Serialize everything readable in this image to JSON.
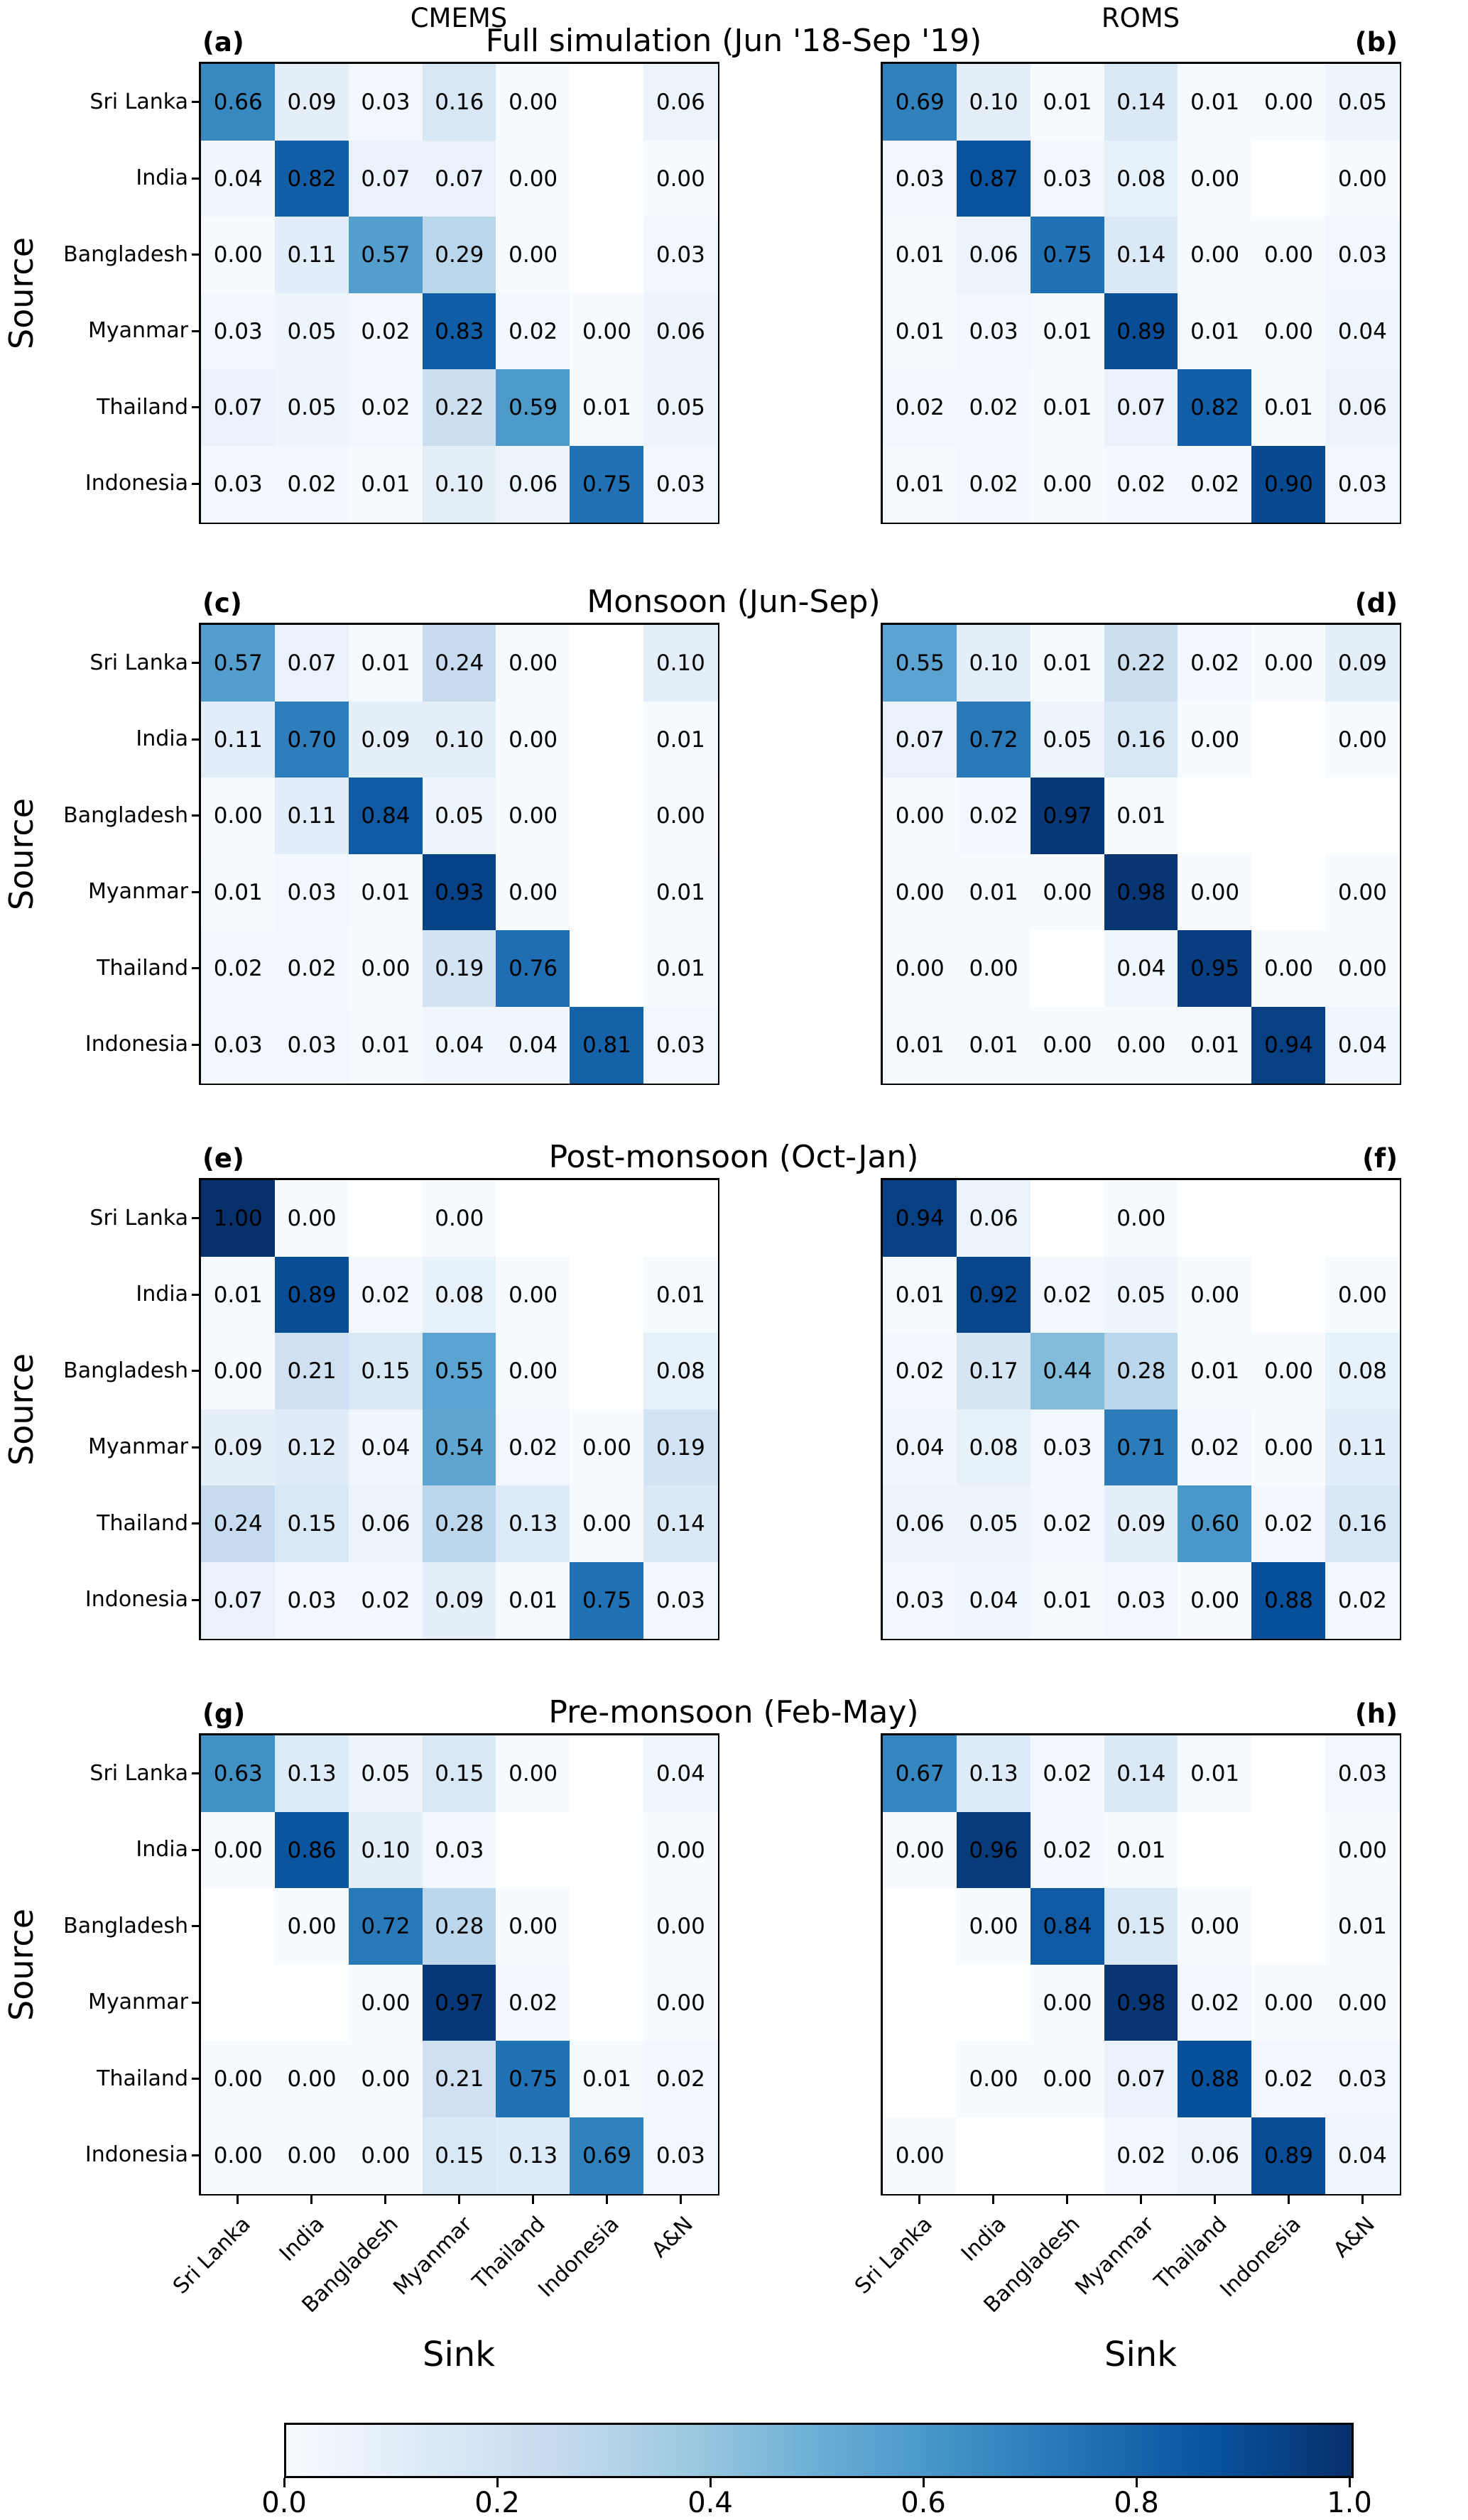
{
  "figure": {
    "column_headers": [
      "CMEMS",
      "ROMS"
    ],
    "row_titles": [
      "Full simulation (Jun '18-Sep '19)",
      "Monsoon (Jun-Sep)",
      "Post-monsoon (Oct-Jan)",
      "Pre-monsoon (Feb-May)"
    ],
    "panel_labels": [
      "(a)",
      "(b)",
      "(c)",
      "(d)",
      "(e)",
      "(f)",
      "(g)",
      "(h)"
    ],
    "y_axis_label": "Source",
    "x_axis_label": "Sink"
  },
  "chart_data": {
    "type": "heatmap",
    "colormap": "Blues",
    "vmin": 0,
    "vmax": 1,
    "sources": [
      "Sri Lanka",
      "India",
      "Bangladesh",
      "Myanmar",
      "Thailand",
      "Indonesia"
    ],
    "sinks": [
      "Sri Lanka",
      "India",
      "Bangladesh",
      "Myanmar",
      "Thailand",
      "Indonesia",
      "A&N"
    ],
    "panels": [
      {
        "label": "(a)",
        "model": "CMEMS",
        "season": "Full simulation (Jun '18-Sep '19)",
        "values": [
          [
            0.66,
            0.09,
            0.03,
            0.16,
            0.0,
            null,
            0.06
          ],
          [
            0.04,
            0.82,
            0.07,
            0.07,
            0.0,
            null,
            0.0
          ],
          [
            0.0,
            0.11,
            0.57,
            0.29,
            0.0,
            null,
            0.03
          ],
          [
            0.03,
            0.05,
            0.02,
            0.83,
            0.02,
            0.0,
            0.06
          ],
          [
            0.07,
            0.05,
            0.02,
            0.22,
            0.59,
            0.01,
            0.05
          ],
          [
            0.03,
            0.02,
            0.01,
            0.1,
            0.06,
            0.75,
            0.03
          ]
        ]
      },
      {
        "label": "(b)",
        "model": "ROMS",
        "season": "Full simulation (Jun '18-Sep '19)",
        "values": [
          [
            0.69,
            0.1,
            0.01,
            0.14,
            0.01,
            0.0,
            0.05
          ],
          [
            0.03,
            0.87,
            0.03,
            0.08,
            0.0,
            null,
            0.0
          ],
          [
            0.01,
            0.06,
            0.75,
            0.14,
            0.0,
            0.0,
            0.03
          ],
          [
            0.01,
            0.03,
            0.01,
            0.89,
            0.01,
            0.0,
            0.04
          ],
          [
            0.02,
            0.02,
            0.01,
            0.07,
            0.82,
            0.01,
            0.06
          ],
          [
            0.01,
            0.02,
            0.0,
            0.02,
            0.02,
            0.9,
            0.03
          ]
        ]
      },
      {
        "label": "(c)",
        "model": "CMEMS",
        "season": "Monsoon (Jun-Sep)",
        "values": [
          [
            0.57,
            0.07,
            0.01,
            0.24,
            0.0,
            null,
            0.1
          ],
          [
            0.11,
            0.7,
            0.09,
            0.1,
            0.0,
            null,
            0.01
          ],
          [
            0.0,
            0.11,
            0.84,
            0.05,
            0.0,
            null,
            0.0
          ],
          [
            0.01,
            0.03,
            0.01,
            0.93,
            0.0,
            null,
            0.01
          ],
          [
            0.02,
            0.02,
            0.0,
            0.19,
            0.76,
            null,
            0.01
          ],
          [
            0.03,
            0.03,
            0.01,
            0.04,
            0.04,
            0.81,
            0.03
          ]
        ]
      },
      {
        "label": "(d)",
        "model": "ROMS",
        "season": "Monsoon (Jun-Sep)",
        "values": [
          [
            0.55,
            0.1,
            0.01,
            0.22,
            0.02,
            0.0,
            0.09
          ],
          [
            0.07,
            0.72,
            0.05,
            0.16,
            0.0,
            null,
            0.0
          ],
          [
            0.0,
            0.02,
            0.97,
            0.01,
            null,
            null,
            null
          ],
          [
            0.0,
            0.01,
            0.0,
            0.98,
            0.0,
            null,
            0.0
          ],
          [
            0.0,
            0.0,
            null,
            0.04,
            0.95,
            0.0,
            0.0
          ],
          [
            0.01,
            0.01,
            0.0,
            0.0,
            0.01,
            0.94,
            0.04
          ]
        ]
      },
      {
        "label": "(e)",
        "model": "CMEMS",
        "season": "Post-monsoon (Oct-Jan)",
        "values": [
          [
            1.0,
            0.0,
            null,
            0.0,
            null,
            null,
            null
          ],
          [
            0.01,
            0.89,
            0.02,
            0.08,
            0.0,
            null,
            0.01
          ],
          [
            0.0,
            0.21,
            0.15,
            0.55,
            0.0,
            null,
            0.08
          ],
          [
            0.09,
            0.12,
            0.04,
            0.54,
            0.02,
            0.0,
            0.19
          ],
          [
            0.24,
            0.15,
            0.06,
            0.28,
            0.13,
            0.0,
            0.14
          ],
          [
            0.07,
            0.03,
            0.02,
            0.09,
            0.01,
            0.75,
            0.03
          ]
        ]
      },
      {
        "label": "(f)",
        "model": "ROMS",
        "season": "Post-monsoon (Oct-Jan)",
        "values": [
          [
            0.94,
            0.06,
            null,
            0.0,
            null,
            null,
            null
          ],
          [
            0.01,
            0.92,
            0.02,
            0.05,
            0.0,
            null,
            0.0
          ],
          [
            0.02,
            0.17,
            0.44,
            0.28,
            0.01,
            0.0,
            0.08
          ],
          [
            0.04,
            0.08,
            0.03,
            0.71,
            0.02,
            0.0,
            0.11
          ],
          [
            0.06,
            0.05,
            0.02,
            0.09,
            0.6,
            0.02,
            0.16
          ],
          [
            0.03,
            0.04,
            0.01,
            0.03,
            0.0,
            0.88,
            0.02
          ]
        ]
      },
      {
        "label": "(g)",
        "model": "CMEMS",
        "season": "Pre-monsoon (Feb-May)",
        "values": [
          [
            0.63,
            0.13,
            0.05,
            0.15,
            0.0,
            null,
            0.04
          ],
          [
            0.0,
            0.86,
            0.1,
            0.03,
            null,
            null,
            0.0
          ],
          [
            null,
            0.0,
            0.72,
            0.28,
            0.0,
            null,
            0.0
          ],
          [
            null,
            null,
            0.0,
            0.97,
            0.02,
            null,
            0.0
          ],
          [
            0.0,
            0.0,
            0.0,
            0.21,
            0.75,
            0.01,
            0.02
          ],
          [
            0.0,
            0.0,
            0.0,
            0.15,
            0.13,
            0.69,
            0.03
          ]
        ]
      },
      {
        "label": "(h)",
        "model": "ROMS",
        "season": "Pre-monsoon (Feb-May)",
        "values": [
          [
            0.67,
            0.13,
            0.02,
            0.14,
            0.01,
            null,
            0.03
          ],
          [
            0.0,
            0.96,
            0.02,
            0.01,
            null,
            null,
            0.0
          ],
          [
            null,
            0.0,
            0.84,
            0.15,
            0.0,
            null,
            0.01
          ],
          [
            null,
            null,
            0.0,
            0.98,
            0.02,
            0.0,
            0.0
          ],
          [
            null,
            0.0,
            0.0,
            0.07,
            0.88,
            0.02,
            0.03
          ],
          [
            0.0,
            null,
            null,
            0.02,
            0.06,
            0.89,
            0.04
          ]
        ]
      }
    ]
  },
  "colorbar": {
    "ticks": [
      "0.0",
      "0.2",
      "0.4",
      "0.6",
      "0.8",
      "1.0"
    ],
    "gradient_stops": [
      "#f7fbff",
      "#deebf7",
      "#c6dbef",
      "#9ecae1",
      "#6baed6",
      "#4292c6",
      "#2171b5",
      "#08519c",
      "#08306b"
    ],
    "empty_cell_color": "#ffffff"
  }
}
